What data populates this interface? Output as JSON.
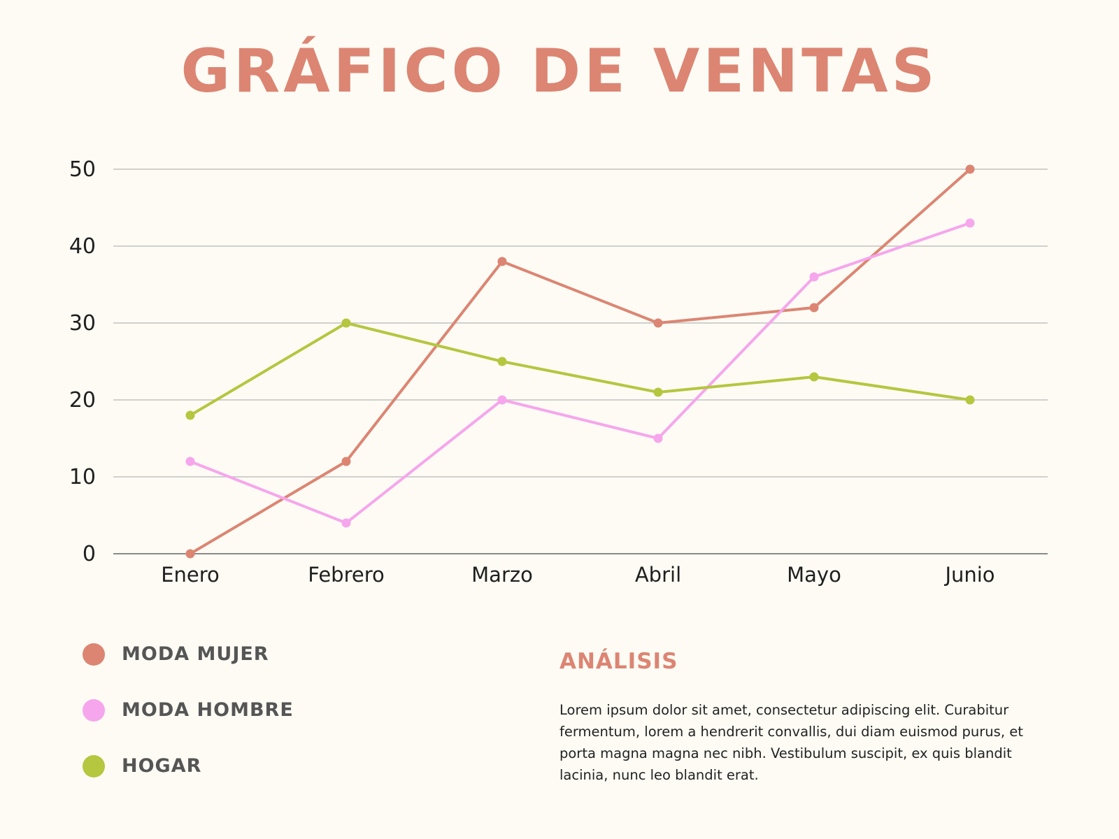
{
  "chart_data": {
    "type": "line",
    "title": "GRÁFICO DE VENTAS",
    "categories": [
      "Enero",
      "Febrero",
      "Marzo",
      "Abril",
      "Mayo",
      "Junio"
    ],
    "yticks": [
      0,
      10,
      20,
      30,
      40,
      50
    ],
    "ylim": [
      0,
      50
    ],
    "grid": true,
    "legend_position": "bottom-left",
    "series": [
      {
        "name": "MODA MUJER",
        "color": "#dc8573",
        "values": [
          0,
          12,
          38,
          30,
          32,
          50
        ]
      },
      {
        "name": "MODA HOMBRE",
        "color": "#f6a6ec",
        "values": [
          12,
          4,
          20,
          15,
          36,
          43
        ]
      },
      {
        "name": "HOGAR",
        "color": "#b5c63f",
        "values": [
          18,
          30,
          25,
          21,
          23,
          20
        ]
      }
    ]
  },
  "analysis": {
    "title": "ANÁLISIS",
    "text": "Lorem ipsum dolor sit amet, consectetur adipiscing elit. Curabitur fermentum, lorem a hendrerit convallis, dui diam euismod purus, et porta magna magna nec nibh. Vestibulum suscipit, ex quis blandit lacinia, nunc leo blandit erat."
  }
}
